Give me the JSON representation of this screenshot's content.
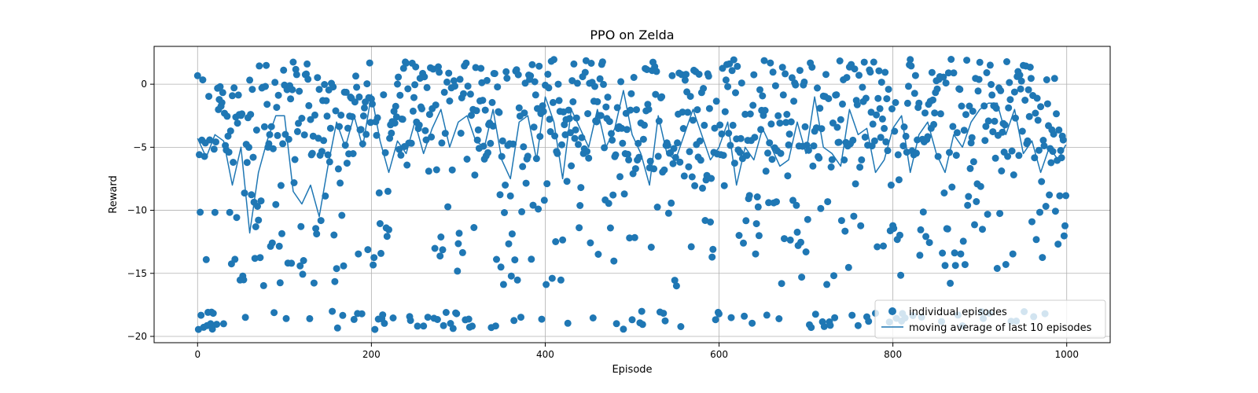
{
  "chart_data": {
    "type": "scatter",
    "title": "PPO on Zelda",
    "xlabel": "Episode",
    "ylabel": "Reward",
    "xlim": [
      -50,
      1050
    ],
    "ylim": [
      -20.5,
      3
    ],
    "xticks": [
      0,
      200,
      400,
      600,
      800,
      1000
    ],
    "yticks": [
      -20,
      -15,
      -10,
      -5,
      0
    ],
    "grid": true,
    "legend": {
      "placement": "lower-right"
    },
    "series": [
      {
        "name": "individual episodes",
        "kind": "scatter",
        "color": "#1f77b4",
        "episodes": {
          "start": 0,
          "end": 999
        },
        "reward_levels": {
          "upper_cluster": [
            -6,
            2
          ],
          "middle_spread": [
            -16,
            -6
          ],
          "lower_cluster": [
            -19.5,
            -18
          ]
        }
      },
      {
        "name": "moving average of last 10 episodes",
        "kind": "line",
        "color": "#1f77b4",
        "x": [
          0,
          10,
          20,
          30,
          40,
          50,
          60,
          70,
          80,
          90,
          100,
          110,
          120,
          130,
          140,
          150,
          160,
          170,
          180,
          190,
          200,
          210,
          220,
          230,
          240,
          250,
          260,
          270,
          280,
          290,
          300,
          310,
          320,
          330,
          340,
          350,
          360,
          370,
          380,
          390,
          400,
          410,
          420,
          430,
          440,
          450,
          460,
          470,
          480,
          490,
          500,
          510,
          520,
          530,
          540,
          550,
          560,
          570,
          580,
          590,
          600,
          610,
          620,
          630,
          640,
          650,
          660,
          670,
          680,
          690,
          700,
          710,
          720,
          730,
          740,
          750,
          760,
          770,
          780,
          790,
          800,
          810,
          820,
          830,
          840,
          850,
          860,
          870,
          880,
          890,
          900,
          910,
          920,
          930,
          940,
          950,
          960,
          970,
          980,
          990,
          999
        ],
        "y": [
          -4.3,
          -5.8,
          -4.0,
          -4.5,
          -8.0,
          -5.0,
          -11.8,
          -7.0,
          -4.5,
          -2.5,
          -2.5,
          -8.5,
          -9.5,
          -8.0,
          -10.5,
          -6.5,
          -3.0,
          -5.0,
          -2.5,
          -5.0,
          -0.8,
          -4.5,
          -7.0,
          -4.5,
          -5.5,
          -3.0,
          -5.5,
          -3.5,
          -2.0,
          -5.0,
          -3.0,
          -2.5,
          -4.5,
          -5.0,
          -2.0,
          -6.0,
          -7.5,
          -3.0,
          -2.5,
          -6.0,
          -1.0,
          -3.0,
          -7.5,
          -2.0,
          -3.5,
          -5.0,
          -2.0,
          -5.0,
          -3.5,
          -0.5,
          -4.0,
          -5.5,
          -8.0,
          -2.5,
          -5.5,
          -6.0,
          -4.0,
          -2.0,
          -4.0,
          -6.0,
          -5.0,
          -3.0,
          -8.0,
          -5.0,
          -6.0,
          -3.5,
          -5.0,
          -6.5,
          -6.0,
          -3.0,
          -5.5,
          -1.0,
          -5.0,
          -5.5,
          -6.5,
          -2.0,
          -4.0,
          -3.5,
          -7.0,
          -6.0,
          -3.5,
          -2.5,
          -7.0,
          -4.0,
          -3.0,
          -5.5,
          -7.0,
          -4.0,
          -5.0,
          -3.0,
          -2.0,
          -1.5,
          -1.5,
          -4.0,
          -2.0,
          -5.5,
          -4.5,
          -7.0,
          -5.0,
          -6.0,
          -4.8
        ]
      }
    ]
  }
}
